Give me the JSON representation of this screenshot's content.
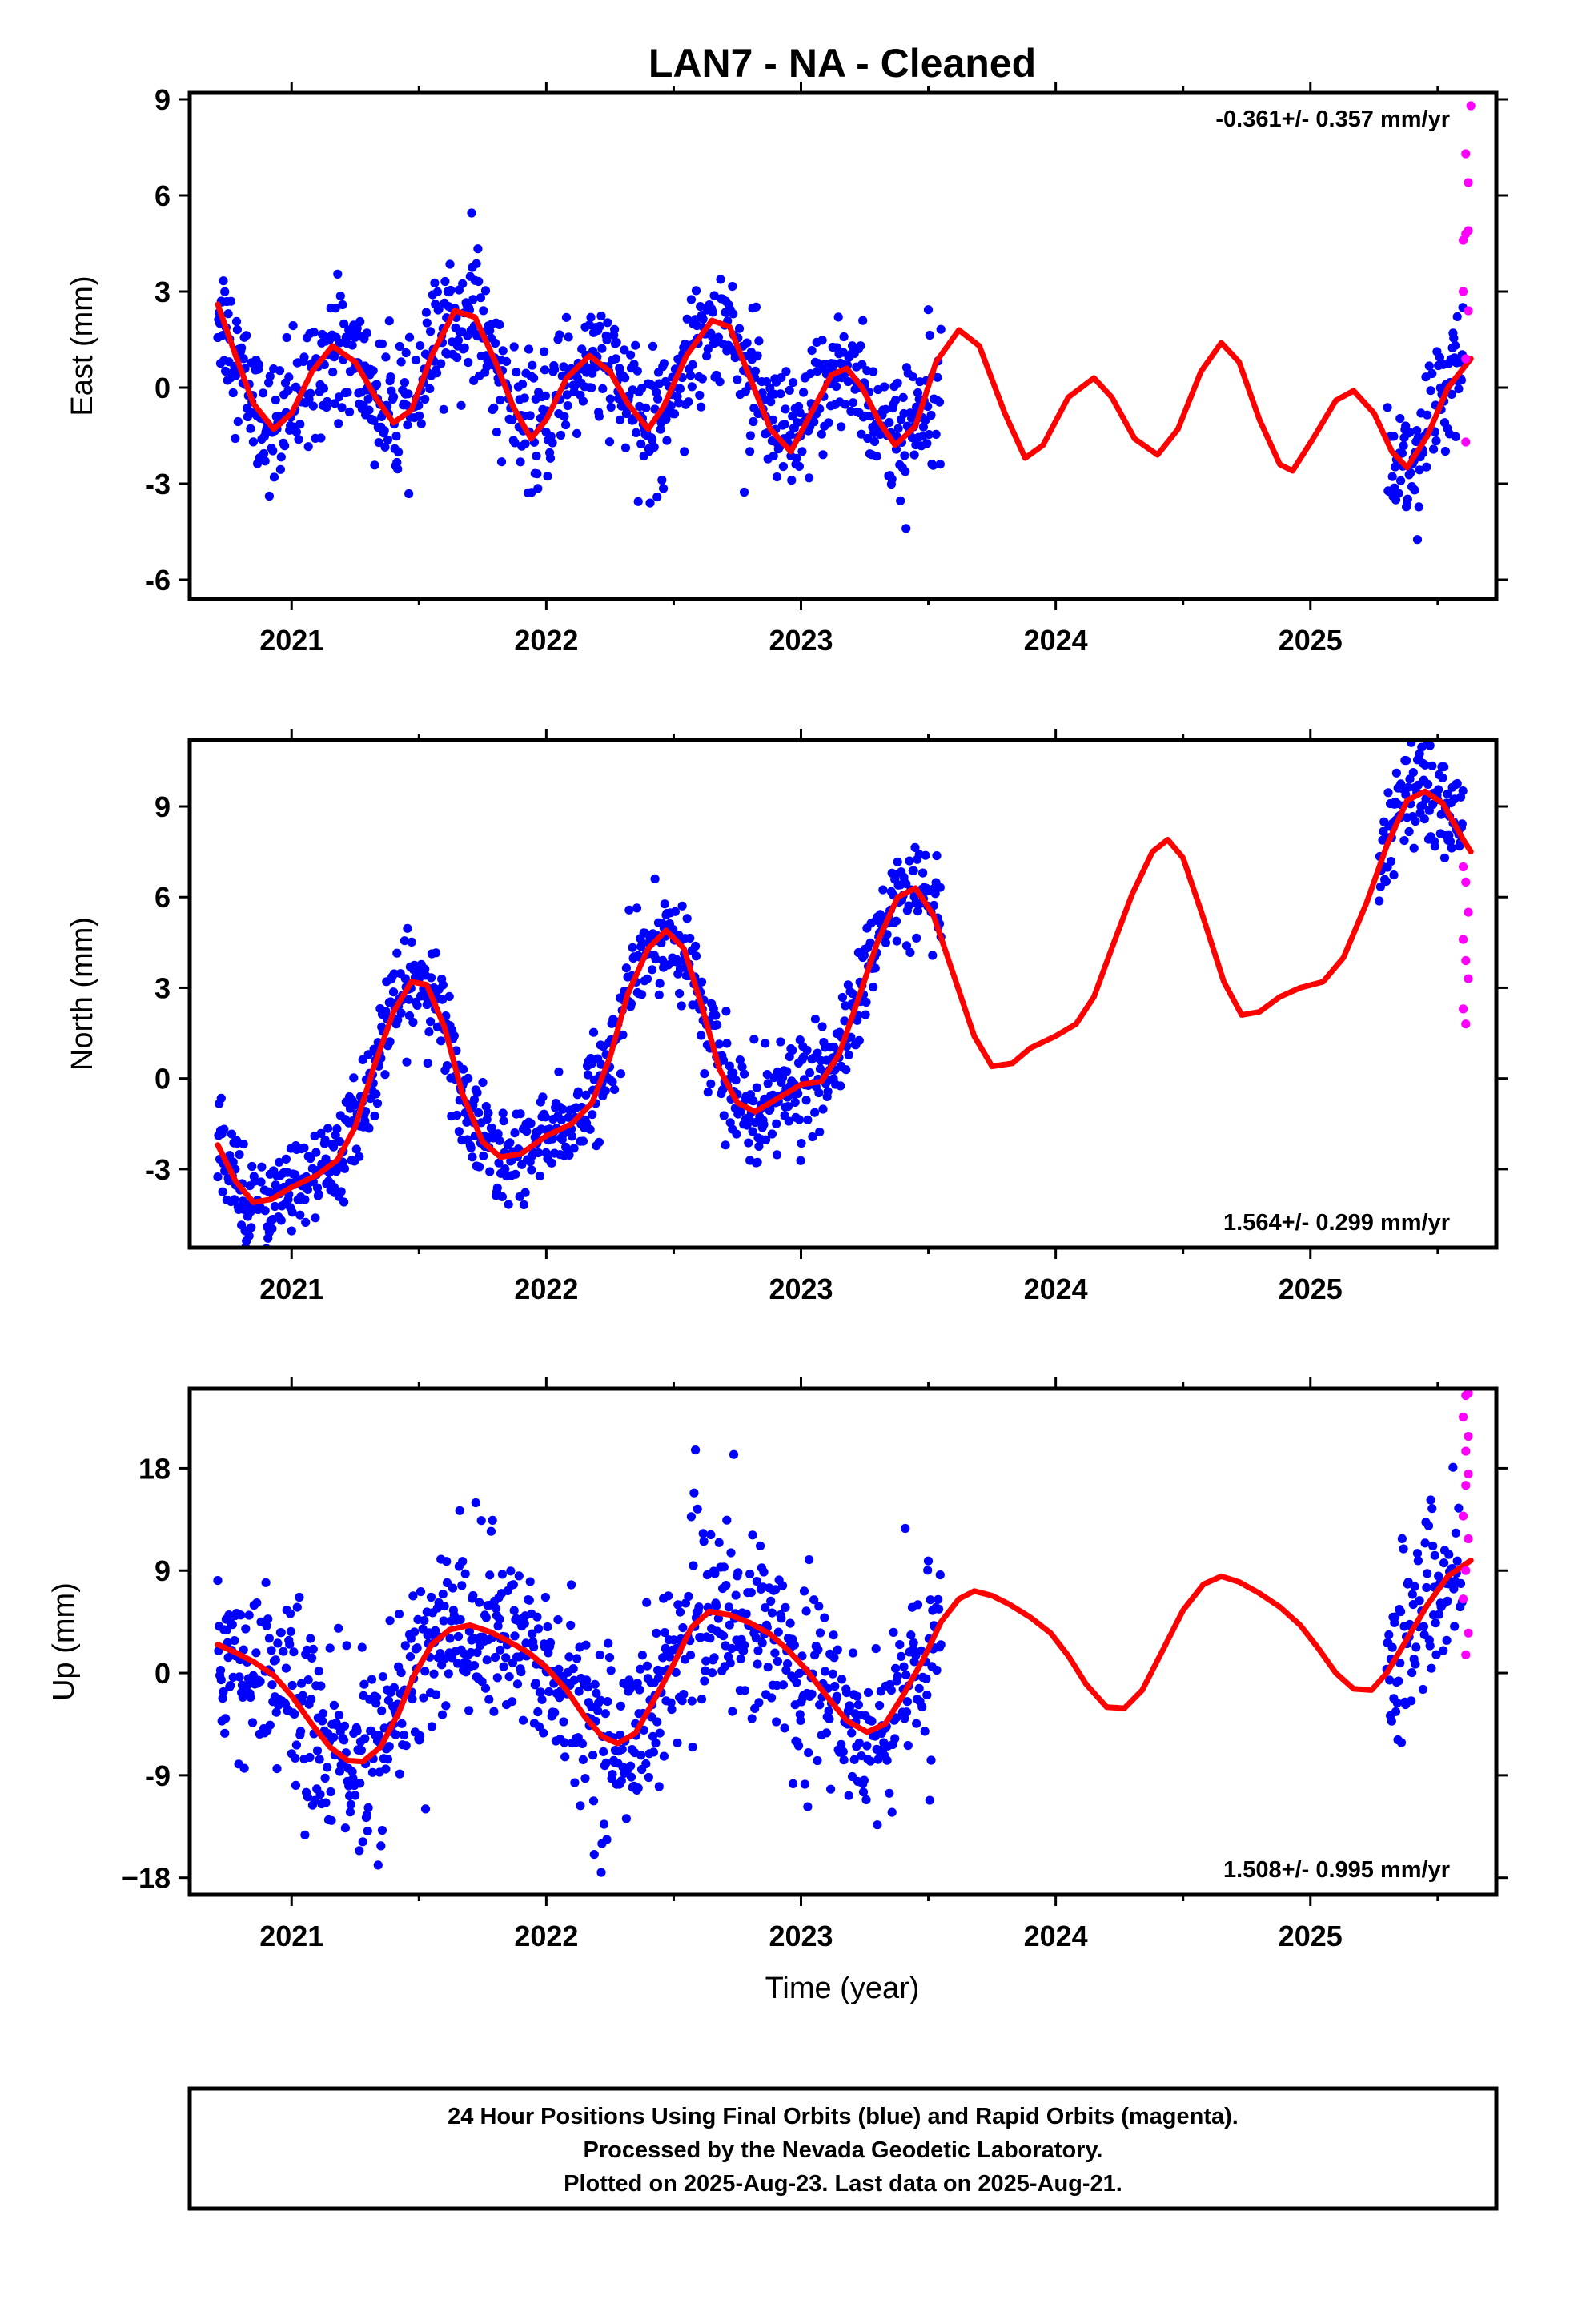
{
  "chart_data": {
    "type": "scatter",
    "title": "LAN7  - NA - Cleaned",
    "xlabel": "Time (year)",
    "xlim": [
      2020.6,
      2025.73
    ],
    "xticks": [
      "2021",
      "2022",
      "2023",
      "2024",
      "2025"
    ],
    "colors": {
      "final": "#0000ff",
      "rapid": "#ff00ff",
      "model": "#ff0000"
    },
    "panels": [
      {
        "name": "east",
        "ylabel": "East (mm)",
        "ylim": [
          -6.6,
          9.2
        ],
        "yticks": [
          "9",
          "6",
          "3",
          "0",
          "-3",
          "-6"
        ],
        "rate": "-0.361+/- 0.357 mm/yr",
        "rate_position": "top-right",
        "trend": -0.36,
        "offset": 0.9,
        "amp1": 1.3,
        "phase1": 0.2,
        "amp2": 0.5,
        "phase2": 1.5,
        "noise": 1.0,
        "model_curve": [
          [
            2020.71,
            2.6
          ],
          [
            2020.78,
            1.0
          ],
          [
            2020.85,
            -0.5
          ],
          [
            2020.93,
            -1.3
          ],
          [
            2021.0,
            -0.8
          ],
          [
            2021.08,
            0.5
          ],
          [
            2021.16,
            1.3
          ],
          [
            2021.25,
            0.8
          ],
          [
            2021.33,
            -0.3
          ],
          [
            2021.4,
            -1.1
          ],
          [
            2021.47,
            -0.7
          ],
          [
            2021.55,
            1.0
          ],
          [
            2021.64,
            2.4
          ],
          [
            2021.72,
            2.2
          ],
          [
            2021.8,
            0.8
          ],
          [
            2021.87,
            -0.6
          ],
          [
            2021.94,
            -1.6
          ],
          [
            2022.0,
            -1.0
          ],
          [
            2022.08,
            0.3
          ],
          [
            2022.17,
            1.0
          ],
          [
            2022.25,
            0.5
          ],
          [
            2022.32,
            -0.5
          ],
          [
            2022.4,
            -1.3
          ],
          [
            2022.46,
            -0.6
          ],
          [
            2022.55,
            1.0
          ],
          [
            2022.65,
            2.1
          ],
          [
            2022.72,
            1.9
          ],
          [
            2022.8,
            0.3
          ],
          [
            2022.88,
            -1.3
          ],
          [
            2022.96,
            -2.0
          ],
          [
            2023.04,
            -0.8
          ],
          [
            2023.12,
            0.4
          ],
          [
            2023.18,
            0.6
          ],
          [
            2023.24,
            0.0
          ],
          [
            2023.31,
            -1.1
          ],
          [
            2023.37,
            -1.8
          ],
          [
            2023.45,
            -1.2
          ],
          [
            2023.53,
            0.8
          ],
          [
            2023.62,
            1.8
          ],
          [
            2023.7,
            1.3
          ],
          [
            2023.8,
            -0.8
          ],
          [
            2023.88,
            -2.2
          ],
          [
            2023.95,
            -1.8
          ],
          [
            2024.05,
            -0.3
          ],
          [
            2024.15,
            0.3
          ],
          [
            2024.22,
            -0.3
          ],
          [
            2024.31,
            -1.6
          ],
          [
            2024.4,
            -2.1
          ],
          [
            2024.48,
            -1.3
          ],
          [
            2024.57,
            0.5
          ],
          [
            2024.65,
            1.4
          ],
          [
            2024.72,
            0.8
          ],
          [
            2024.8,
            -1.0
          ],
          [
            2024.88,
            -2.4
          ],
          [
            2024.93,
            -2.6
          ],
          [
            2025.01,
            -1.6
          ],
          [
            2025.1,
            -0.4
          ],
          [
            2025.17,
            -0.1
          ],
          [
            2025.25,
            -0.8
          ],
          [
            2025.32,
            -2.0
          ],
          [
            2025.38,
            -2.5
          ],
          [
            2025.46,
            -1.5
          ],
          [
            2025.54,
            0.0
          ],
          [
            2025.63,
            0.9
          ]
        ],
        "final_segments": [
          [
            2020.71,
            2023.55
          ],
          [
            2025.3,
            2025.6
          ]
        ],
        "rapid_points": [
          [
            2025.61,
            -1.7
          ],
          [
            2025.61,
            0.9
          ],
          [
            2025.62,
            2.4
          ],
          [
            2025.6,
            3.0
          ],
          [
            2025.61,
            4.8
          ],
          [
            2025.62,
            4.9
          ],
          [
            2025.6,
            4.6
          ],
          [
            2025.62,
            6.4
          ],
          [
            2025.61,
            7.3
          ],
          [
            2025.63,
            8.8
          ]
        ]
      },
      {
        "name": "north",
        "ylabel": "North (mm)",
        "ylim": [
          -5.6,
          11.2
        ],
        "yticks": [
          "9",
          "6",
          "3",
          "0",
          "-3"
        ],
        "rate": "1.564+/- 0.299 mm/yr",
        "rate_position": "bottom-right",
        "trend": 1.56,
        "offset": -1.5,
        "amp1": 3.1,
        "phase1": 4.6,
        "amp2": 0.8,
        "phase2": 0.4,
        "noise": 0.8,
        "model_curve": [
          [
            2020.71,
            -2.2
          ],
          [
            2020.78,
            -3.4
          ],
          [
            2020.85,
            -4.1
          ],
          [
            2020.92,
            -4.0
          ],
          [
            2021.0,
            -3.6
          ],
          [
            2021.1,
            -3.2
          ],
          [
            2021.18,
            -2.7
          ],
          [
            2021.25,
            -1.6
          ],
          [
            2021.32,
            0.3
          ],
          [
            2021.4,
            2.2
          ],
          [
            2021.47,
            3.2
          ],
          [
            2021.53,
            3.1
          ],
          [
            2021.6,
            1.7
          ],
          [
            2021.67,
            -0.5
          ],
          [
            2021.75,
            -2.1
          ],
          [
            2021.82,
            -2.6
          ],
          [
            2021.9,
            -2.5
          ],
          [
            2022.0,
            -1.9
          ],
          [
            2022.1,
            -1.5
          ],
          [
            2022.18,
            -0.8
          ],
          [
            2022.25,
            0.7
          ],
          [
            2022.32,
            2.8
          ],
          [
            2022.4,
            4.3
          ],
          [
            2022.47,
            4.9
          ],
          [
            2022.54,
            4.3
          ],
          [
            2022.61,
            2.4
          ],
          [
            2022.68,
            0.3
          ],
          [
            2022.75,
            -0.8
          ],
          [
            2022.82,
            -1.1
          ],
          [
            2022.9,
            -0.7
          ],
          [
            2023.0,
            -0.2
          ],
          [
            2023.08,
            -0.1
          ],
          [
            2023.15,
            0.8
          ],
          [
            2023.22,
            2.5
          ],
          [
            2023.3,
            4.5
          ],
          [
            2023.38,
            6.0
          ],
          [
            2023.45,
            6.3
          ],
          [
            2023.52,
            5.4
          ],
          [
            2023.6,
            3.4
          ],
          [
            2023.68,
            1.4
          ],
          [
            2023.75,
            0.4
          ],
          [
            2023.83,
            0.5
          ],
          [
            2023.9,
            1.0
          ],
          [
            2024.0,
            1.4
          ],
          [
            2024.08,
            1.8
          ],
          [
            2024.15,
            2.7
          ],
          [
            2024.22,
            4.3
          ],
          [
            2024.3,
            6.1
          ],
          [
            2024.38,
            7.5
          ],
          [
            2024.44,
            7.9
          ],
          [
            2024.5,
            7.3
          ],
          [
            2024.58,
            5.3
          ],
          [
            2024.66,
            3.2
          ],
          [
            2024.73,
            2.1
          ],
          [
            2024.8,
            2.2
          ],
          [
            2024.88,
            2.7
          ],
          [
            2024.96,
            3.0
          ],
          [
            2025.05,
            3.2
          ],
          [
            2025.13,
            4.0
          ],
          [
            2025.22,
            5.8
          ],
          [
            2025.3,
            7.7
          ],
          [
            2025.38,
            9.2
          ],
          [
            2025.45,
            9.5
          ],
          [
            2025.52,
            9.1
          ],
          [
            2025.6,
            7.9
          ],
          [
            2025.63,
            7.5
          ]
        ],
        "final_segments": [
          [
            2020.71,
            2023.55
          ],
          [
            2025.27,
            2025.6
          ]
        ],
        "rapid_points": [
          [
            2025.61,
            1.8
          ],
          [
            2025.6,
            2.3
          ],
          [
            2025.62,
            3.3
          ],
          [
            2025.61,
            3.9
          ],
          [
            2025.6,
            4.6
          ],
          [
            2025.62,
            5.5
          ],
          [
            2025.61,
            6.5
          ],
          [
            2025.6,
            7.0
          ]
        ]
      },
      {
        "name": "up",
        "ylabel": "Up (mm)",
        "ylim": [
          -19.5,
          25.0
        ],
        "yticks": [
          "18",
          "9",
          "0",
          "-9",
          "−18"
        ],
        "rate": "1.508+/- 0.995 mm/yr",
        "rate_position": "bottom-right",
        "trend": 1.51,
        "offset": -0.5,
        "amp1": 5.5,
        "phase1": 1.4,
        "amp2": 1.4,
        "phase2": 2.3,
        "noise": 4.0,
        "model_curve": [
          [
            2020.71,
            2.5
          ],
          [
            2020.78,
            1.8
          ],
          [
            2020.85,
            1.0
          ],
          [
            2020.93,
            -0.2
          ],
          [
            2021.0,
            -2.0
          ],
          [
            2021.08,
            -4.5
          ],
          [
            2021.15,
            -6.5
          ],
          [
            2021.22,
            -7.7
          ],
          [
            2021.28,
            -7.8
          ],
          [
            2021.35,
            -6.5
          ],
          [
            2021.42,
            -3.5
          ],
          [
            2021.48,
            -0.2
          ],
          [
            2021.55,
            2.5
          ],
          [
            2021.62,
            3.8
          ],
          [
            2021.7,
            4.2
          ],
          [
            2021.78,
            3.6
          ],
          [
            2021.85,
            2.8
          ],
          [
            2021.93,
            1.8
          ],
          [
            2022.0,
            0.5
          ],
          [
            2022.08,
            -1.5
          ],
          [
            2022.15,
            -3.8
          ],
          [
            2022.22,
            -5.6
          ],
          [
            2022.28,
            -6.2
          ],
          [
            2022.35,
            -5.3
          ],
          [
            2022.42,
            -2.5
          ],
          [
            2022.5,
            0.8
          ],
          [
            2022.57,
            4.0
          ],
          [
            2022.64,
            5.4
          ],
          [
            2022.72,
            5.1
          ],
          [
            2022.8,
            4.4
          ],
          [
            2022.88,
            3.4
          ],
          [
            2022.95,
            2.0
          ],
          [
            2023.02,
            0.3
          ],
          [
            2023.1,
            -2.0
          ],
          [
            2023.18,
            -4.2
          ],
          [
            2023.26,
            -5.2
          ],
          [
            2023.33,
            -4.5
          ],
          [
            2023.4,
            -2.0
          ],
          [
            2023.48,
            1.2
          ],
          [
            2023.55,
            4.5
          ],
          [
            2023.62,
            6.5
          ],
          [
            2023.68,
            7.2
          ],
          [
            2023.75,
            6.8
          ],
          [
            2023.82,
            6.0
          ],
          [
            2023.9,
            4.9
          ],
          [
            2023.98,
            3.5
          ],
          [
            2024.05,
            1.5
          ],
          [
            2024.12,
            -1.0
          ],
          [
            2024.2,
            -3.0
          ],
          [
            2024.27,
            -3.1
          ],
          [
            2024.34,
            -1.5
          ],
          [
            2024.42,
            2.0
          ],
          [
            2024.5,
            5.5
          ],
          [
            2024.58,
            7.8
          ],
          [
            2024.65,
            8.5
          ],
          [
            2024.72,
            8.0
          ],
          [
            2024.8,
            7.0
          ],
          [
            2024.88,
            5.8
          ],
          [
            2024.96,
            4.2
          ],
          [
            2025.03,
            2.2
          ],
          [
            2025.1,
            0.0
          ],
          [
            2025.17,
            -1.4
          ],
          [
            2025.24,
            -1.5
          ],
          [
            2025.3,
            0.0
          ],
          [
            2025.38,
            3.0
          ],
          [
            2025.46,
            6.0
          ],
          [
            2025.54,
            8.5
          ],
          [
            2025.63,
            9.9
          ]
        ],
        "final_segments": [
          [
            2020.71,
            2023.55
          ],
          [
            2025.3,
            2025.6
          ]
        ],
        "rapid_points": [
          [
            2025.61,
            1.6
          ],
          [
            2025.62,
            3.5
          ],
          [
            2025.6,
            6.5
          ],
          [
            2025.61,
            9.0
          ],
          [
            2025.62,
            11.8
          ],
          [
            2025.6,
            13.8
          ],
          [
            2025.61,
            16.5
          ],
          [
            2025.62,
            17.5
          ],
          [
            2025.61,
            19.5
          ],
          [
            2025.62,
            20.8
          ],
          [
            2025.6,
            22.5
          ],
          [
            2025.61,
            24.4
          ],
          [
            2025.62,
            24.6
          ]
        ]
      }
    ]
  },
  "footer": {
    "line1": "24 Hour Positions Using Final Orbits (blue) and Rapid Orbits (magenta).",
    "line2": "Processed by the Nevada Geodetic Laboratory.",
    "line3": "Plotted on 2025-Aug-23. Last data on 2025-Aug-21."
  }
}
